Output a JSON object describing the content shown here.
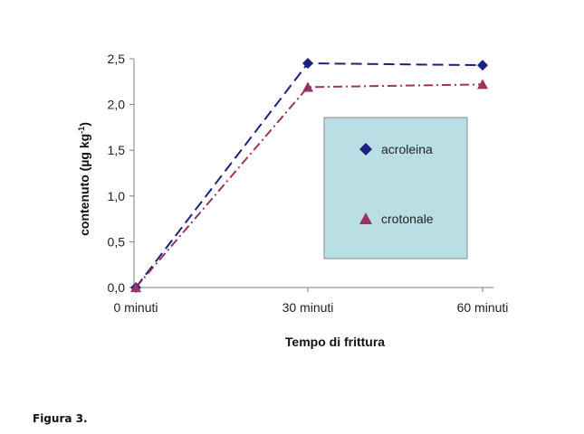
{
  "chart_data": {
    "type": "line",
    "title": "",
    "xlabel": "Tempo di frittura",
    "ylabel_parts": [
      "contenuto (µg kg",
      "-1",
      ")"
    ],
    "categories": [
      "0 minuti",
      "30 minuti",
      "60 minuti"
    ],
    "ylim": [
      0,
      2.5
    ],
    "yticks": [
      "0,0",
      "0,5",
      "1,0",
      "1,5",
      "2,0",
      "2,5"
    ],
    "grid": false,
    "legend_position": "inside-right",
    "series": [
      {
        "name": "acroleina",
        "values": [
          0.0,
          2.45,
          2.43
        ],
        "color": "#1a237e",
        "marker": "diamond",
        "line_style": "dashed"
      },
      {
        "name": "crotonale",
        "values": [
          0.0,
          2.19,
          2.22
        ],
        "color": "#993366",
        "marker": "triangle",
        "line_style": "dash-dot"
      }
    ],
    "legend_background": "#b9dfe4"
  },
  "caption": "Figura 3."
}
